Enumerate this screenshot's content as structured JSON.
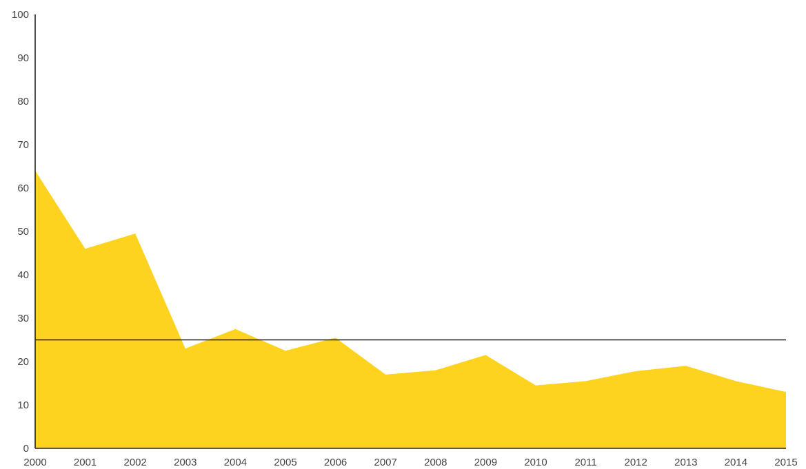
{
  "chart_data": {
    "type": "area",
    "title": "",
    "xlabel": "",
    "ylabel": "",
    "x": [
      2000,
      2001,
      2002,
      2003,
      2004,
      2005,
      2006,
      2007,
      2008,
      2009,
      2010,
      2011,
      2012,
      2013,
      2014,
      2015
    ],
    "x_tick_labels": [
      "2000",
      "2001",
      "2002",
      "2003",
      "2004",
      "2005",
      "2006",
      "2007",
      "2008",
      "2009",
      "2010",
      "2011",
      "2012",
      "2013",
      "2014",
      "2015"
    ],
    "y_tick_labels": [
      "0",
      "10",
      "20",
      "30",
      "40",
      "50",
      "60",
      "70",
      "80",
      "90",
      "100"
    ],
    "series": [
      {
        "values": [
          64,
          46,
          49.5,
          23,
          27.5,
          22.5,
          25.5,
          17,
          18,
          21.5,
          14.5,
          15.5,
          17.8,
          19,
          15.5,
          13
        ],
        "color": "#FDD31F"
      }
    ],
    "reference_line": {
      "y": 25,
      "color": "#1a1a1a"
    },
    "xlim": [
      2000,
      2015
    ],
    "ylim": [
      0,
      100
    ],
    "grid": false,
    "legend": "none"
  }
}
